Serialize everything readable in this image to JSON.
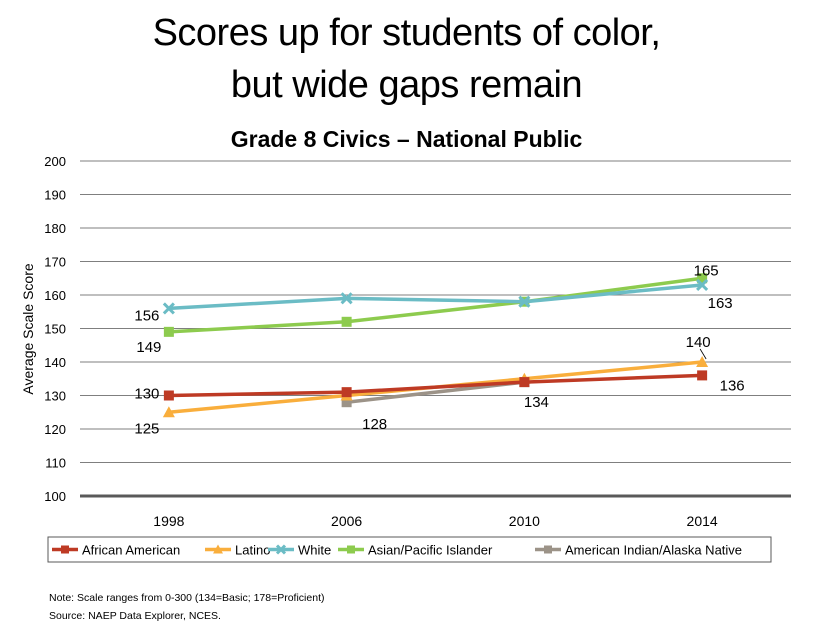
{
  "slide": {
    "title_line1": "Scores up for students of color,",
    "title_line2": "but wide gaps remain",
    "note": "Note:  Scale ranges from 0-300 (134=Basic; 178=Proficient)",
    "source": "Source: NAEP Data Explorer, NCES."
  },
  "chart_data": {
    "type": "line",
    "title": "Grade 8 Civics – National Public",
    "xlabel": "",
    "ylabel": "Average Scale Score",
    "ylim": [
      100,
      200
    ],
    "yticks": [
      100,
      110,
      120,
      130,
      140,
      150,
      160,
      170,
      180,
      190,
      200
    ],
    "grid": true,
    "legend_position": "bottom",
    "categories": [
      "1998",
      "2006",
      "2010",
      "2014"
    ],
    "series": [
      {
        "name": "African American",
        "color": "#BE3A24",
        "marker": "square",
        "values": [
          130,
          131,
          134,
          136
        ]
      },
      {
        "name": "Latino",
        "color": "#F9AE3C",
        "marker": "triangle",
        "values": [
          125,
          130,
          135,
          140
        ]
      },
      {
        "name": "White",
        "color": "#6BBCC5",
        "marker": "x",
        "values": [
          156,
          159,
          158,
          163
        ]
      },
      {
        "name": "Asian/Pacific Islander",
        "color": "#8DCB4E",
        "marker": "square",
        "values": [
          149,
          152,
          158,
          165
        ]
      },
      {
        "name": "American Indian/Alaska Native",
        "color": "#9C9388",
        "marker": "square",
        "values": [
          null,
          128,
          134,
          null
        ]
      }
    ],
    "data_labels": [
      {
        "series": "White",
        "category": "1998",
        "text": "156"
      },
      {
        "series": "Asian/Pacific Islander",
        "category": "1998",
        "text": "149"
      },
      {
        "series": "African American",
        "category": "1998",
        "text": "130"
      },
      {
        "series": "Latino",
        "category": "1998",
        "text": "125"
      },
      {
        "series": "American Indian/Alaska Native",
        "category": "2006",
        "text": "128"
      },
      {
        "series": "American Indian/Alaska Native",
        "category": "2010",
        "text": "134"
      },
      {
        "series": "Asian/Pacific Islander",
        "category": "2014",
        "text": "165"
      },
      {
        "series": "White",
        "category": "2014",
        "text": "163"
      },
      {
        "series": "Latino",
        "category": "2014",
        "text": "140"
      },
      {
        "series": "African American",
        "category": "2014",
        "text": "136"
      }
    ]
  }
}
